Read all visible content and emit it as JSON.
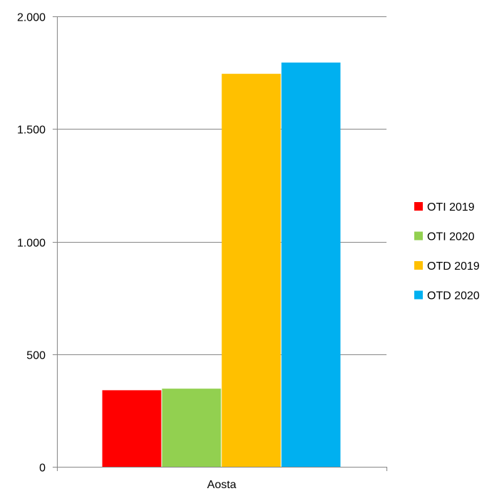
{
  "chart_data": {
    "type": "bar",
    "categories": [
      "Aosta"
    ],
    "series": [
      {
        "name": "OTI 2019",
        "values": [
          340
        ],
        "color": "#ff0000"
      },
      {
        "name": "OTI 2020",
        "values": [
          347
        ],
        "color": "#92d050"
      },
      {
        "name": "OTD 2019",
        "values": [
          1745
        ],
        "color": "#ffc000"
      },
      {
        "name": "OTD 2020",
        "values": [
          1795
        ],
        "color": "#00b0f0"
      }
    ],
    "y_ticks": [
      {
        "value": 0,
        "label": "0"
      },
      {
        "value": 500,
        "label": "500"
      },
      {
        "value": 1000,
        "label": "1.000"
      },
      {
        "value": 1500,
        "label": "1.500"
      },
      {
        "value": 2000,
        "label": "2.000"
      }
    ],
    "ylim": [
      0,
      2000
    ],
    "title": "",
    "xlabel": "",
    "ylabel": "",
    "grid": true,
    "legend_position": "right"
  }
}
